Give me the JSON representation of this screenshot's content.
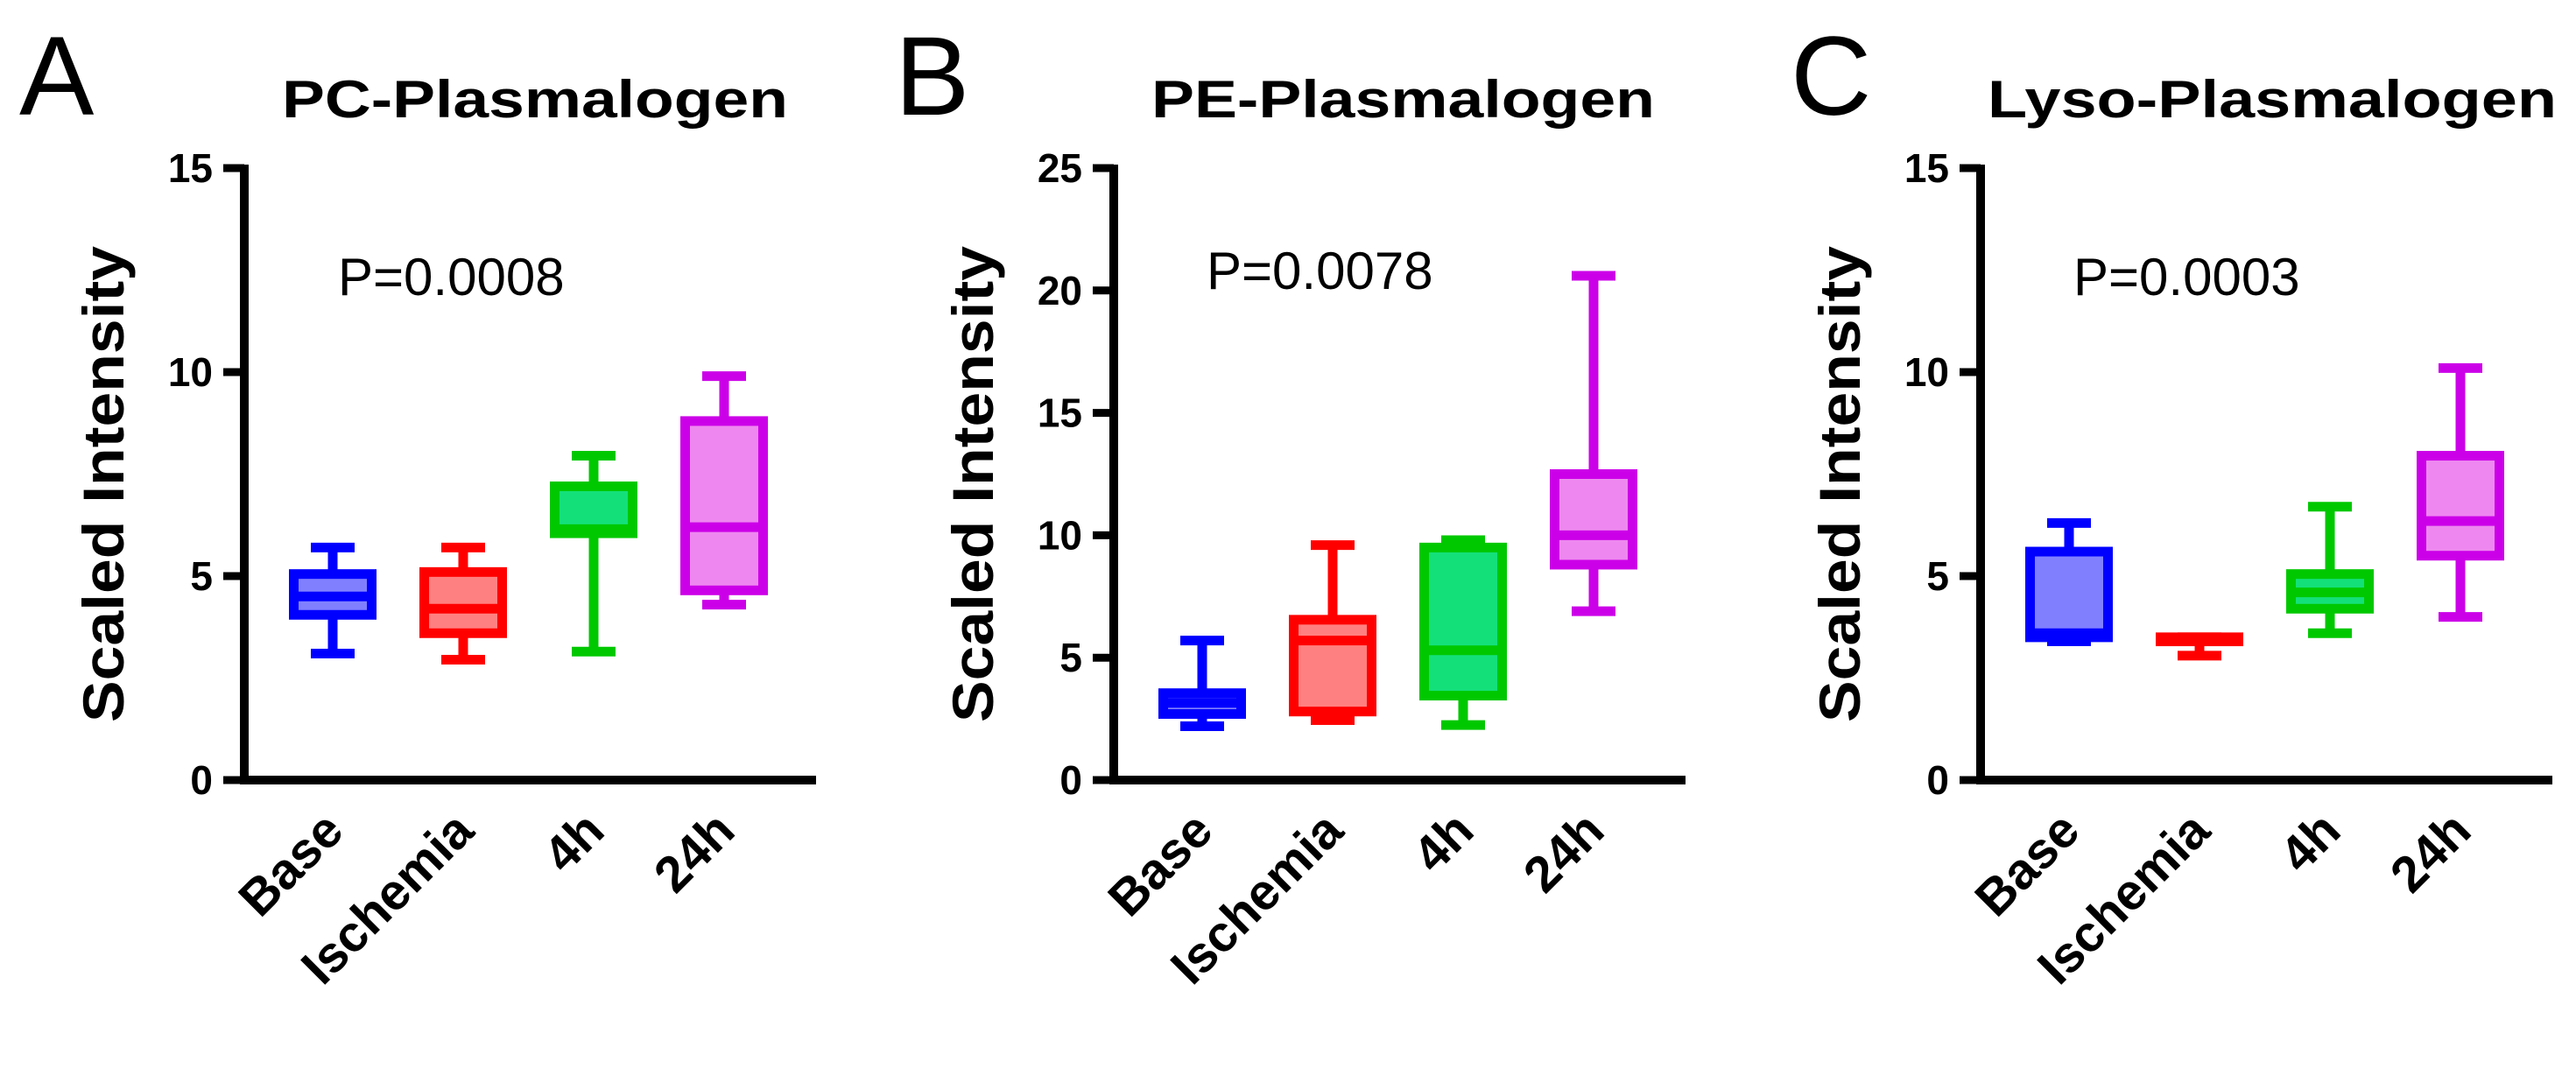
{
  "colors": {
    "axis": "#000000",
    "groups": [
      {
        "stroke": "#0000ff",
        "fill": "#8080ff"
      },
      {
        "stroke": "#ff0000",
        "fill": "#ff8080"
      },
      {
        "stroke": "#00c800",
        "fill": "#14e07a"
      },
      {
        "stroke": "#cc00e8",
        "fill": "#ee88f0"
      }
    ]
  },
  "chart_data": [
    {
      "type": "box",
      "panel_label": "A",
      "title": "PC-Plasmalogen",
      "ylabel": "Scaled Intensity",
      "xlabel": "",
      "annotation": "P=0.0008",
      "ylim": [
        0,
        15
      ],
      "yticks": [
        0,
        5,
        10,
        15
      ],
      "grid": false,
      "categories": [
        "Base",
        "Ischemia",
        "4h",
        "24h"
      ],
      "boxes": [
        {
          "min": 3.1,
          "q1": 4.05,
          "median": 4.5,
          "q3": 5.05,
          "max": 5.7
        },
        {
          "min": 2.95,
          "q1": 3.6,
          "median": 4.2,
          "q3": 5.1,
          "max": 5.7
        },
        {
          "min": 3.15,
          "q1": 6.05,
          "median": 6.15,
          "q3": 7.2,
          "max": 7.95
        },
        {
          "min": 4.3,
          "q1": 4.65,
          "median": 6.2,
          "q3": 8.8,
          "max": 9.9
        }
      ]
    },
    {
      "type": "box",
      "panel_label": "B",
      "title": "PE-Plasmalogen",
      "ylabel": "Scaled Intensity",
      "xlabel": "",
      "annotation": "P=0.0078",
      "ylim": [
        0,
        25
      ],
      "yticks": [
        0,
        5,
        10,
        15,
        20,
        25
      ],
      "grid": false,
      "categories": [
        "Base",
        "Ischemia",
        "4h",
        "24h"
      ],
      "boxes": [
        {
          "min": 2.2,
          "q1": 2.7,
          "median": 3.15,
          "q3": 3.55,
          "max": 5.7
        },
        {
          "min": 2.45,
          "q1": 2.8,
          "median": 5.7,
          "q3": 6.55,
          "max": 9.6
        },
        {
          "min": 2.25,
          "q1": 3.45,
          "median": 5.3,
          "q3": 9.5,
          "max": 9.8
        },
        {
          "min": 6.9,
          "q1": 8.8,
          "median": 10.0,
          "q3": 12.5,
          "max": 20.6
        }
      ]
    },
    {
      "type": "box",
      "panel_label": "C",
      "title": "Lyso-Plasmalogen",
      "ylabel": "Scaled Intensity",
      "xlabel": "",
      "annotation": "P=0.0003",
      "ylim": [
        0,
        15
      ],
      "yticks": [
        0,
        5,
        10,
        15
      ],
      "grid": false,
      "categories": [
        "Base",
        "Ischemia",
        "4h",
        "24h"
      ],
      "boxes": [
        {
          "min": 3.4,
          "q1": 3.5,
          "median": 3.6,
          "q3": 5.6,
          "max": 6.3
        },
        {
          "min": 3.05,
          "q1": 3.4,
          "median": 3.45,
          "q3": 3.5,
          "max": 3.5
        },
        {
          "min": 3.6,
          "q1": 4.2,
          "median": 4.6,
          "q3": 5.05,
          "max": 6.7
        },
        {
          "min": 4.0,
          "q1": 5.5,
          "median": 6.35,
          "q3": 7.95,
          "max": 10.1
        }
      ]
    }
  ]
}
